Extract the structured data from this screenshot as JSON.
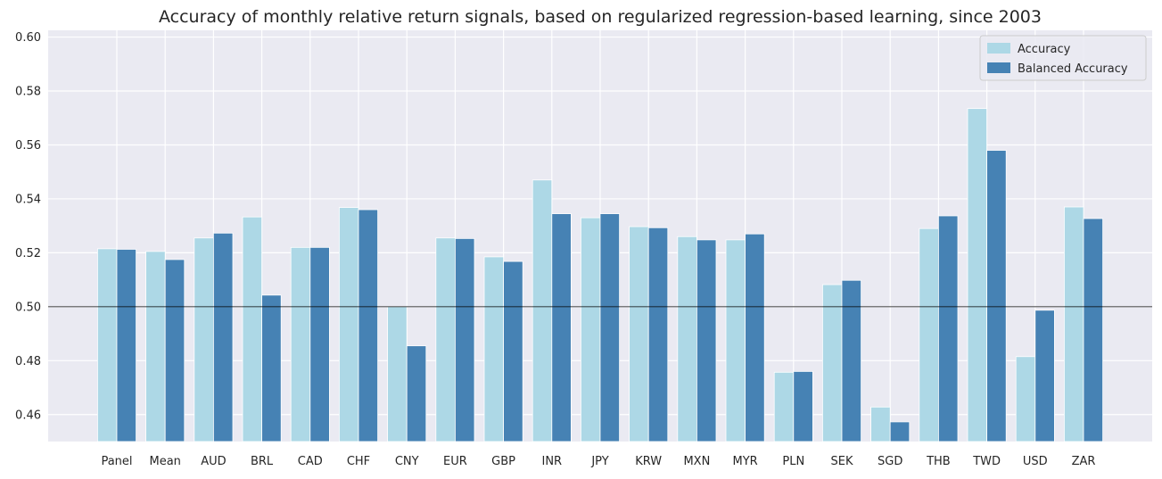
{
  "chart_data": {
    "type": "bar",
    "title": "Accuracy of monthly relative return signals, based on regularized regression-based learning, since 2003",
    "xlabel": "",
    "ylabel": "",
    "categories": [
      "Panel",
      "Mean",
      "AUD",
      "BRL",
      "CAD",
      "CHF",
      "CNY",
      "EUR",
      "GBP",
      "INR",
      "JPY",
      "KRW",
      "MXN",
      "MYR",
      "PLN",
      "SEK",
      "SGD",
      "THB",
      "TWD",
      "USD",
      "ZAR"
    ],
    "series": [
      {
        "name": "Accuracy",
        "color": "#add8e6",
        "values": [
          0.5215,
          0.5205,
          0.5255,
          0.5333,
          0.522,
          0.5368,
          0.5,
          0.5255,
          0.5185,
          0.547,
          0.533,
          0.5297,
          0.526,
          0.5248,
          0.4757,
          0.5082,
          0.4628,
          0.529,
          0.5735,
          0.4815,
          0.537
        ]
      },
      {
        "name": "Balanced Accuracy",
        "color": "#4682b4",
        "values": [
          0.5213,
          0.5175,
          0.5273,
          0.5043,
          0.522,
          0.536,
          0.4855,
          0.5253,
          0.5168,
          0.5345,
          0.5345,
          0.5293,
          0.5248,
          0.527,
          0.476,
          0.5098,
          0.4573,
          0.5337,
          0.558,
          0.4987,
          0.5327
        ]
      }
    ],
    "ylim": [
      0.45,
      0.6025
    ],
    "yticks": [
      "0.46",
      "0.48",
      "0.50",
      "0.52",
      "0.54",
      "0.56",
      "0.58",
      "0.60"
    ],
    "reference_line": 0.5,
    "grid": true,
    "legend_position": "top-right",
    "background_color": "#eaeaf2",
    "grid_color": "#ffffff"
  }
}
